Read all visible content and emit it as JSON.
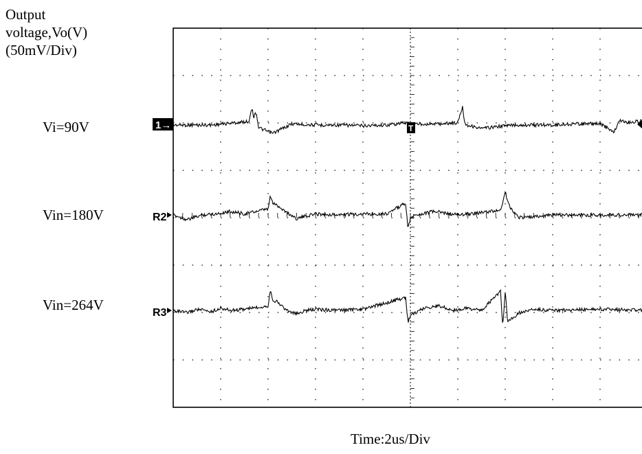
{
  "chart_data": {
    "type": "line",
    "title": "",
    "ylabel_lines": [
      "Output",
      "voltage,Vo(V)",
      "(50mV/Div)"
    ],
    "xlabel": "Time:2us/Div",
    "grid": true,
    "series": [
      {
        "name": "Vi=90V",
        "marker": "1",
        "x": [
          0.0,
          0.8,
          1.6,
          1.65,
          1.7,
          1.75,
          1.8,
          1.9,
          2.1,
          2.3,
          2.5,
          3.0,
          3.5,
          4.0,
          4.5,
          4.9,
          5.0,
          5.6,
          6.0,
          6.1,
          6.15,
          6.2,
          6.3,
          6.5,
          6.9,
          7.2,
          8.0,
          8.5,
          9.0,
          9.3,
          9.4,
          9.6,
          9.8,
          10.0
        ],
        "y": [
          0.0,
          0.0,
          0.15,
          0.75,
          0.35,
          0.55,
          -0.1,
          -0.2,
          -0.35,
          -0.15,
          0.05,
          0.0,
          0.0,
          -0.03,
          0.0,
          0.1,
          0.05,
          0.05,
          0.1,
          0.78,
          0.05,
          0.0,
          -0.05,
          -0.15,
          -0.05,
          0.0,
          0.0,
          0.05,
          0.05,
          -0.3,
          0.2,
          0.1,
          0.15,
          0.2
        ]
      },
      {
        "name": "Vin=180V",
        "marker": "R2",
        "x": [
          0.0,
          0.3,
          0.45,
          0.6,
          0.9,
          1.2,
          1.5,
          2.0,
          2.05,
          2.1,
          2.2,
          2.4,
          2.6,
          2.8,
          3.0,
          3.5,
          4.0,
          4.5,
          4.9,
          4.95,
          5.0,
          5.1,
          5.5,
          6.0,
          6.5,
          6.9,
          7.0,
          7.1,
          7.3,
          7.5,
          8.0,
          8.5,
          9.0,
          10.0
        ],
        "y": [
          0.0,
          -0.2,
          -0.1,
          0.0,
          0.05,
          0.15,
          0.05,
          0.25,
          0.8,
          0.5,
          0.4,
          0.1,
          -0.15,
          -0.05,
          0.05,
          0.0,
          0.05,
          0.05,
          0.5,
          -0.6,
          -0.15,
          0.0,
          0.15,
          0.0,
          0.1,
          0.2,
          0.95,
          0.3,
          -0.1,
          -0.1,
          0.0,
          0.0,
          0.0,
          0.0
        ]
      },
      {
        "name": "Vin=264V",
        "marker": "R3",
        "x": [
          0.0,
          0.3,
          0.5,
          0.8,
          1.0,
          1.2,
          1.5,
          2.0,
          2.05,
          2.1,
          2.2,
          2.4,
          2.6,
          2.8,
          3.0,
          3.5,
          4.0,
          4.9,
          4.95,
          5.0,
          5.1,
          5.3,
          5.6,
          5.9,
          6.2,
          6.5,
          6.9,
          6.95,
          7.0,
          7.05,
          7.3,
          7.6,
          8.0,
          9.0,
          10.0
        ],
        "y": [
          0.0,
          -0.1,
          0.05,
          -0.05,
          0.1,
          0.0,
          0.05,
          0.2,
          0.9,
          0.45,
          0.35,
          0.0,
          -0.15,
          0.0,
          0.05,
          0.0,
          0.05,
          0.55,
          -0.5,
          -0.2,
          -0.1,
          0.1,
          0.2,
          0.0,
          0.1,
          0.0,
          0.8,
          -0.7,
          0.8,
          -0.5,
          -0.1,
          0.05,
          0.0,
          0.05,
          0.0
        ]
      }
    ]
  },
  "frame_marker": "T"
}
